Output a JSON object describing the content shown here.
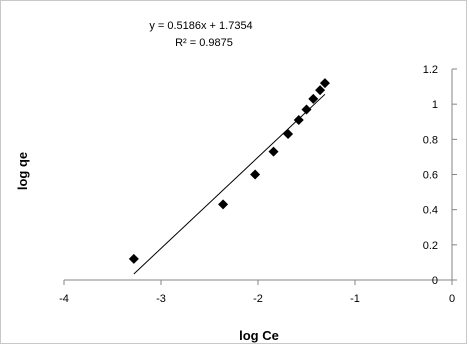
{
  "chart_data": {
    "type": "scatter",
    "xlabel": "log Ce",
    "ylabel": "log qe",
    "xlim": [
      -4,
      0
    ],
    "ylim": [
      0,
      1.2
    ],
    "x_ticks": [
      -4,
      -3,
      -2,
      -1,
      0
    ],
    "y_ticks": [
      0,
      0.2,
      0.4,
      0.6,
      0.8,
      1,
      1.2
    ],
    "x_tick_labels": [
      "-4",
      "-3",
      "-2",
      "-1",
      "0"
    ],
    "y_tick_labels": [
      "0",
      "0.2",
      "0.4",
      "0.6",
      "0.8",
      "1",
      "1.2"
    ],
    "grid": false,
    "marker": "diamond",
    "marker_color": "#000000",
    "points": [
      {
        "x": -3.28,
        "y": 0.12
      },
      {
        "x": -2.36,
        "y": 0.43
      },
      {
        "x": -2.03,
        "y": 0.6
      },
      {
        "x": -1.84,
        "y": 0.73
      },
      {
        "x": -1.69,
        "y": 0.83
      },
      {
        "x": -1.58,
        "y": 0.91
      },
      {
        "x": -1.5,
        "y": 0.97
      },
      {
        "x": -1.43,
        "y": 1.03
      },
      {
        "x": -1.36,
        "y": 1.08
      },
      {
        "x": -1.31,
        "y": 1.12
      }
    ],
    "trendline": {
      "slope": 0.5186,
      "intercept": 1.7354,
      "x_range": [
        -3.28,
        -1.31
      ],
      "equation_label": "y = 0.5186x + 1.7354",
      "r2_label": "R² = 0.9875"
    }
  }
}
